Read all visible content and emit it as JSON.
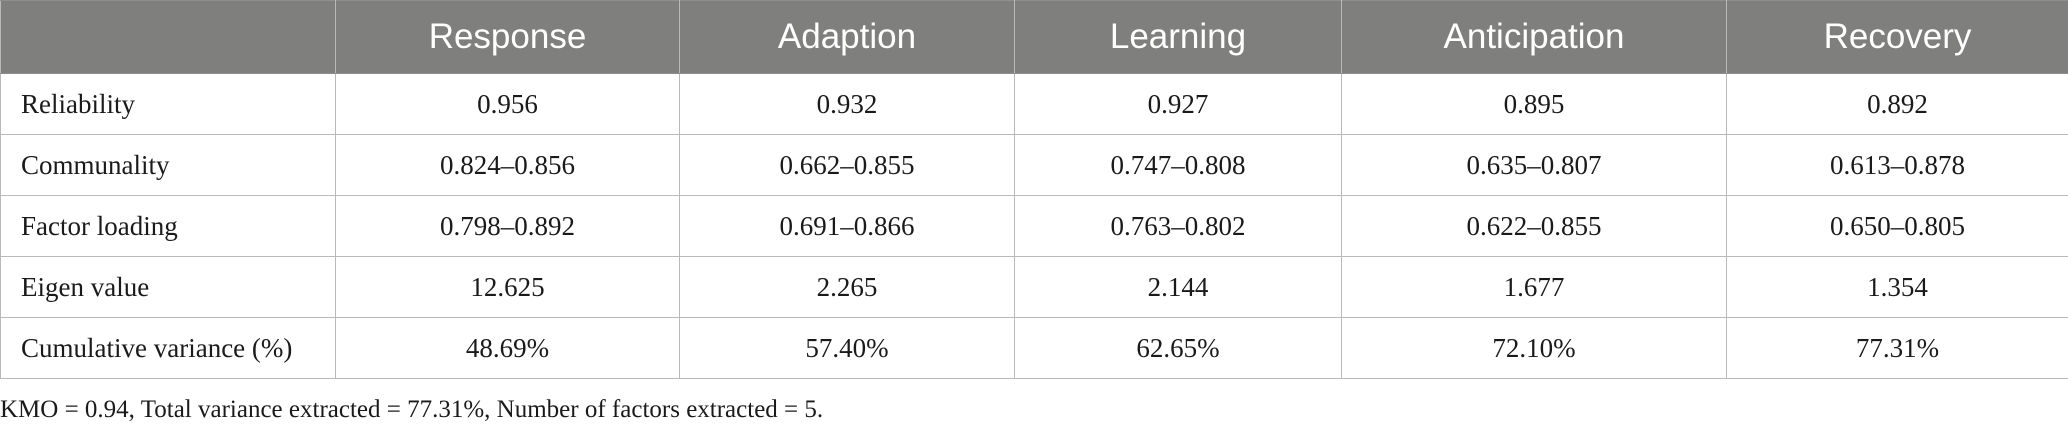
{
  "table": {
    "columns": [
      "",
      "Response",
      "Adaption",
      "Learning",
      "Anticipation",
      "Recovery"
    ],
    "rows": [
      {
        "label": "Reliability",
        "values": [
          "0.956",
          "0.932",
          "0.927",
          "0.895",
          "0.892"
        ]
      },
      {
        "label": "Communality",
        "values": [
          "0.824–0.856",
          "0.662–0.855",
          "0.747–0.808",
          "0.635–0.807",
          "0.613–0.878"
        ]
      },
      {
        "label": "Factor loading",
        "values": [
          "0.798–0.892",
          "0.691–0.866",
          "0.763–0.802",
          "0.622–0.855",
          "0.650–0.805"
        ]
      },
      {
        "label": "Eigen value",
        "values": [
          "12.625",
          "2.265",
          "2.144",
          "1.677",
          "1.354"
        ]
      },
      {
        "label": "Cumulative variance (%)",
        "values": [
          "48.69%",
          "57.40%",
          "62.65%",
          "72.10%",
          "77.31%"
        ]
      }
    ]
  },
  "footnote": "KMO = 0.94, Total variance extracted = 77.31%, Number of factors extracted = 5.",
  "colors": {
    "header_bg": "#7f7f7e",
    "header_text": "#ffffff",
    "grid_line": "#b9b9b9"
  }
}
